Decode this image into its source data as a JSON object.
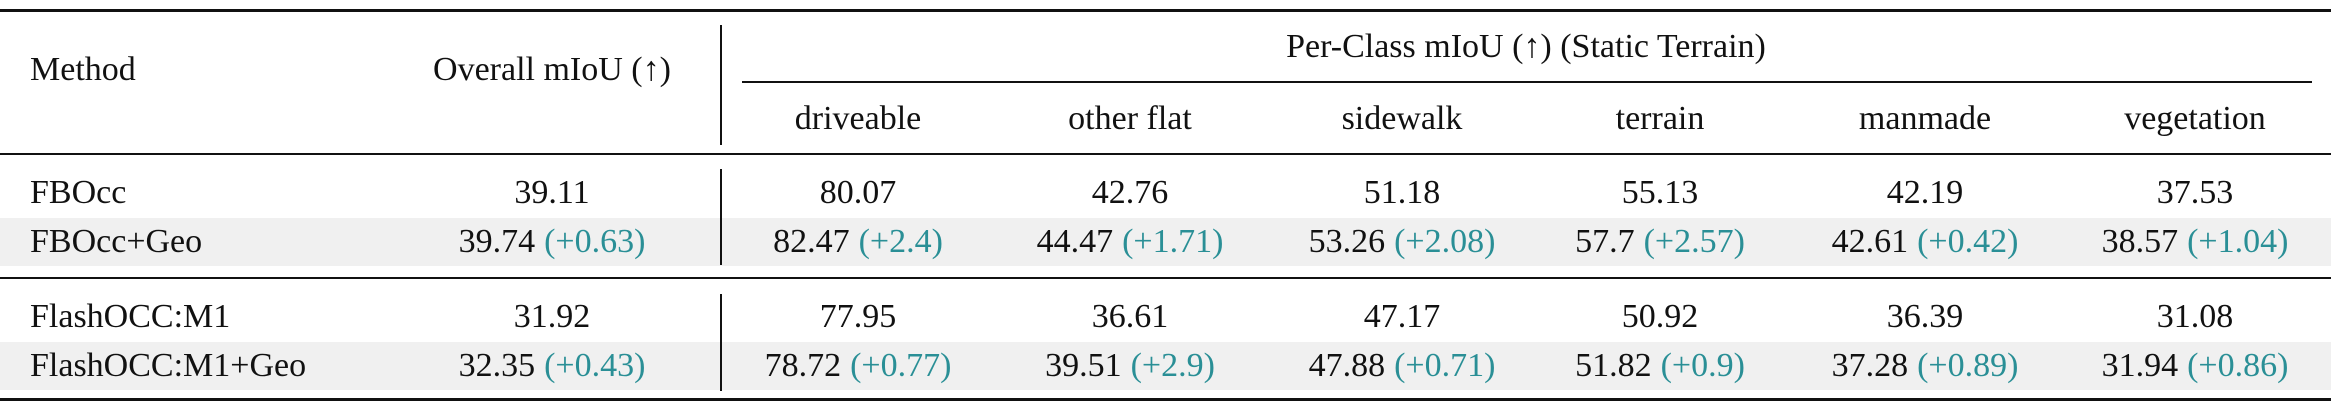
{
  "header": {
    "method": "Method",
    "overall": "Overall mIoU (↑)",
    "group": "Per-Class mIoU (↑) (Static Terrain)",
    "classes": [
      "driveable",
      "other flat",
      "sidewalk",
      "terrain",
      "manmade",
      "vegetation"
    ]
  },
  "groups": [
    {
      "rows": [
        {
          "method": "FBOcc",
          "cells": [
            {
              "value": "39.11"
            },
            {
              "value": "80.07"
            },
            {
              "value": "42.76"
            },
            {
              "value": "51.18"
            },
            {
              "value": "55.13"
            },
            {
              "value": "42.19"
            },
            {
              "value": "37.53"
            }
          ]
        },
        {
          "method": "FBOcc+Geo",
          "cells": [
            {
              "value": "39.74",
              "delta": "(+0.63)"
            },
            {
              "value": "82.47",
              "delta": "(+2.4)"
            },
            {
              "value": "44.47",
              "delta": "(+1.71)"
            },
            {
              "value": "53.26",
              "delta": "(+2.08)"
            },
            {
              "value": "57.7",
              "delta": "(+2.57)"
            },
            {
              "value": "42.61",
              "delta": "(+0.42)"
            },
            {
              "value": "38.57",
              "delta": "(+1.04)"
            }
          ]
        }
      ]
    },
    {
      "rows": [
        {
          "method": "FlashOCC:M1",
          "cells": [
            {
              "value": "31.92"
            },
            {
              "value": "77.95"
            },
            {
              "value": "36.61"
            },
            {
              "value": "47.17"
            },
            {
              "value": "50.92"
            },
            {
              "value": "36.39"
            },
            {
              "value": "31.08"
            }
          ]
        },
        {
          "method": "FlashOCC:M1+Geo",
          "cells": [
            {
              "value": "32.35",
              "delta": "(+0.43)"
            },
            {
              "value": "78.72",
              "delta": "(+0.77)"
            },
            {
              "value": "39.51",
              "delta": "(+2.9)"
            },
            {
              "value": "47.88",
              "delta": "(+0.71)"
            },
            {
              "value": "51.82",
              "delta": "(+0.9)"
            },
            {
              "value": "37.28",
              "delta": "(+0.89)"
            },
            {
              "value": "31.94",
              "delta": "(+0.86)"
            }
          ]
        }
      ]
    }
  ]
}
